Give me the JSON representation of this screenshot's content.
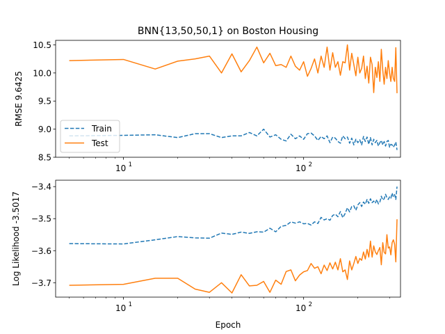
{
  "chart_data": [
    {
      "type": "line",
      "title": "BNN{13,50,50,1} on Boston Housing",
      "xlabel": "",
      "ylabel": "RMSE 9.6425",
      "xscale": "log",
      "xlim": [
        4.2,
        345
      ],
      "ylim": [
        8.5,
        10.58
      ],
      "yticks": [
        8.5,
        9.0,
        9.5,
        10.0,
        10.5
      ],
      "ytick_labels": [
        "8.5",
        "9.0",
        "9.5",
        "10.0",
        "10.5"
      ],
      "xticks": [
        10,
        100
      ],
      "xtick_base": "10",
      "xtick_exponents": [
        "1",
        "2"
      ],
      "legend": {
        "position": "lower-left",
        "entries": [
          "Train",
          "Test"
        ]
      },
      "series": [
        {
          "name": "Train",
          "style": "dashed",
          "color": "#1f77b4",
          "x": [
            5,
            10,
            15,
            20,
            25,
            30,
            35,
            40,
            45,
            50,
            55,
            60,
            65,
            70,
            75,
            80,
            85,
            90,
            95,
            100,
            105,
            110,
            115,
            120,
            125,
            130,
            135,
            140,
            145,
            150,
            155,
            160,
            165,
            170,
            175,
            180,
            185,
            190,
            195,
            200,
            205,
            210,
            215,
            220,
            225,
            230,
            235,
            240,
            245,
            250,
            255,
            260,
            265,
            270,
            275,
            280,
            285,
            290,
            295,
            300,
            305,
            310,
            315,
            320,
            325,
            330
          ],
          "y": [
            8.88,
            8.89,
            8.9,
            8.85,
            8.92,
            8.92,
            8.85,
            8.88,
            8.88,
            8.94,
            8.88,
            9.0,
            8.86,
            8.9,
            8.82,
            8.79,
            8.91,
            8.83,
            8.88,
            8.82,
            8.92,
            8.93,
            8.88,
            8.8,
            8.87,
            8.83,
            8.88,
            8.76,
            8.86,
            8.84,
            8.78,
            8.75,
            8.88,
            8.83,
            8.86,
            8.75,
            8.84,
            8.72,
            8.82,
            8.76,
            8.81,
            8.72,
            8.87,
            8.78,
            8.86,
            8.73,
            8.85,
            8.72,
            8.82,
            8.76,
            8.8,
            8.7,
            8.76,
            8.8,
            8.72,
            8.78,
            8.7,
            8.78,
            8.8,
            8.68,
            8.73,
            8.72,
            8.68,
            8.72,
            8.77,
            8.63
          ]
        },
        {
          "name": "Test",
          "style": "solid",
          "color": "#ff7f0e",
          "x": [
            5,
            10,
            15,
            20,
            25,
            30,
            35,
            40,
            45,
            50,
            55,
            60,
            65,
            70,
            75,
            80,
            85,
            90,
            95,
            100,
            105,
            110,
            115,
            120,
            125,
            130,
            135,
            140,
            145,
            150,
            155,
            160,
            165,
            170,
            175,
            180,
            185,
            190,
            195,
            200,
            205,
            210,
            215,
            220,
            225,
            230,
            235,
            240,
            245,
            250,
            255,
            260,
            265,
            270,
            275,
            280,
            285,
            290,
            295,
            300,
            305,
            310,
            315,
            320,
            325,
            330
          ],
          "y": [
            10.22,
            10.24,
            10.07,
            10.21,
            10.25,
            10.3,
            10.0,
            10.34,
            10.02,
            10.22,
            10.46,
            10.18,
            10.35,
            10.13,
            10.15,
            10.1,
            10.3,
            10.12,
            10.05,
            10.2,
            9.94,
            10.08,
            10.25,
            10.0,
            10.3,
            10.1,
            10.46,
            10.05,
            10.36,
            10.1,
            10.2,
            9.96,
            10.2,
            10.18,
            10.5,
            10.05,
            10.35,
            10.15,
            9.95,
            10.28,
            10.0,
            10.08,
            10.3,
            9.9,
            10.12,
            9.82,
            10.28,
            10.15,
            9.65,
            10.1,
            9.92,
            10.2,
            9.85,
            10.42,
            10.05,
            9.8,
            10.1,
            9.9,
            10.22,
            10.0,
            9.85,
            10.1,
            9.9,
            9.85,
            10.45,
            9.64
          ]
        }
      ]
    },
    {
      "type": "line",
      "title": "",
      "xlabel": "Epoch",
      "ylabel": "Log Likelihood -3.5017",
      "xscale": "log",
      "xlim": [
        4.2,
        345
      ],
      "ylim": [
        -3.745,
        -3.38
      ],
      "yticks": [
        -3.7,
        -3.6,
        -3.5,
        -3.4
      ],
      "ytick_labels": [
        "−3.7",
        "−3.6",
        "−3.5",
        "−3.4"
      ],
      "xticks": [
        10,
        100
      ],
      "xtick_base": "10",
      "xtick_exponents": [
        "1",
        "2"
      ],
      "series": [
        {
          "name": "Train",
          "style": "dashed",
          "color": "#1f77b4",
          "x": [
            5,
            10,
            15,
            20,
            25,
            30,
            35,
            40,
            45,
            50,
            55,
            60,
            65,
            70,
            75,
            80,
            85,
            90,
            95,
            100,
            105,
            110,
            115,
            120,
            125,
            130,
            135,
            140,
            145,
            150,
            155,
            160,
            165,
            170,
            175,
            180,
            185,
            190,
            195,
            200,
            205,
            210,
            215,
            220,
            225,
            230,
            235,
            240,
            245,
            250,
            255,
            260,
            265,
            270,
            275,
            280,
            285,
            290,
            295,
            300,
            305,
            310,
            315,
            320,
            325,
            330
          ],
          "y": [
            -3.578,
            -3.579,
            -3.566,
            -3.556,
            -3.56,
            -3.561,
            -3.545,
            -3.549,
            -3.542,
            -3.546,
            -3.541,
            -3.542,
            -3.53,
            -3.541,
            -3.524,
            -3.521,
            -3.51,
            -3.514,
            -3.51,
            -3.516,
            -3.515,
            -3.52,
            -3.51,
            -3.515,
            -3.496,
            -3.504,
            -3.5,
            -3.505,
            -3.49,
            -3.486,
            -3.494,
            -3.478,
            -3.497,
            -3.484,
            -3.466,
            -3.479,
            -3.462,
            -3.46,
            -3.474,
            -3.457,
            -3.45,
            -3.462,
            -3.448,
            -3.455,
            -3.44,
            -3.452,
            -3.438,
            -3.45,
            -3.445,
            -3.452,
            -3.44,
            -3.454,
            -3.448,
            -3.43,
            -3.442,
            -3.438,
            -3.424,
            -3.434,
            -3.44,
            -3.432,
            -3.436,
            -3.42,
            -3.432,
            -3.425,
            -3.44,
            -3.4
          ]
        },
        {
          "name": "Test",
          "style": "solid",
          "color": "#ff7f0e",
          "x": [
            5,
            10,
            15,
            20,
            25,
            30,
            35,
            40,
            45,
            50,
            55,
            60,
            65,
            70,
            75,
            80,
            85,
            90,
            95,
            100,
            105,
            110,
            115,
            120,
            125,
            130,
            135,
            140,
            145,
            150,
            155,
            160,
            165,
            170,
            175,
            180,
            185,
            190,
            195,
            200,
            205,
            210,
            215,
            220,
            225,
            230,
            235,
            240,
            245,
            250,
            255,
            260,
            265,
            270,
            275,
            280,
            285,
            290,
            295,
            300,
            305,
            310,
            315,
            320,
            325,
            330
          ],
          "y": [
            -3.708,
            -3.705,
            -3.686,
            -3.686,
            -3.72,
            -3.73,
            -3.7,
            -3.732,
            -3.675,
            -3.71,
            -3.708,
            -3.696,
            -3.73,
            -3.692,
            -3.705,
            -3.665,
            -3.66,
            -3.694,
            -3.676,
            -3.666,
            -3.662,
            -3.64,
            -3.655,
            -3.65,
            -3.672,
            -3.645,
            -3.662,
            -3.638,
            -3.657,
            -3.636,
            -3.66,
            -3.625,
            -3.666,
            -3.66,
            -3.69,
            -3.632,
            -3.66,
            -3.64,
            -3.618,
            -3.64,
            -3.624,
            -3.63,
            -3.604,
            -3.626,
            -3.596,
            -3.62,
            -3.57,
            -3.62,
            -3.585,
            -3.604,
            -3.612,
            -3.6,
            -3.59,
            -3.644,
            -3.575,
            -3.605,
            -3.61,
            -3.55,
            -3.592,
            -3.588,
            -3.613,
            -3.575,
            -3.566,
            -3.58,
            -3.635,
            -3.502
          ]
        }
      ]
    }
  ]
}
